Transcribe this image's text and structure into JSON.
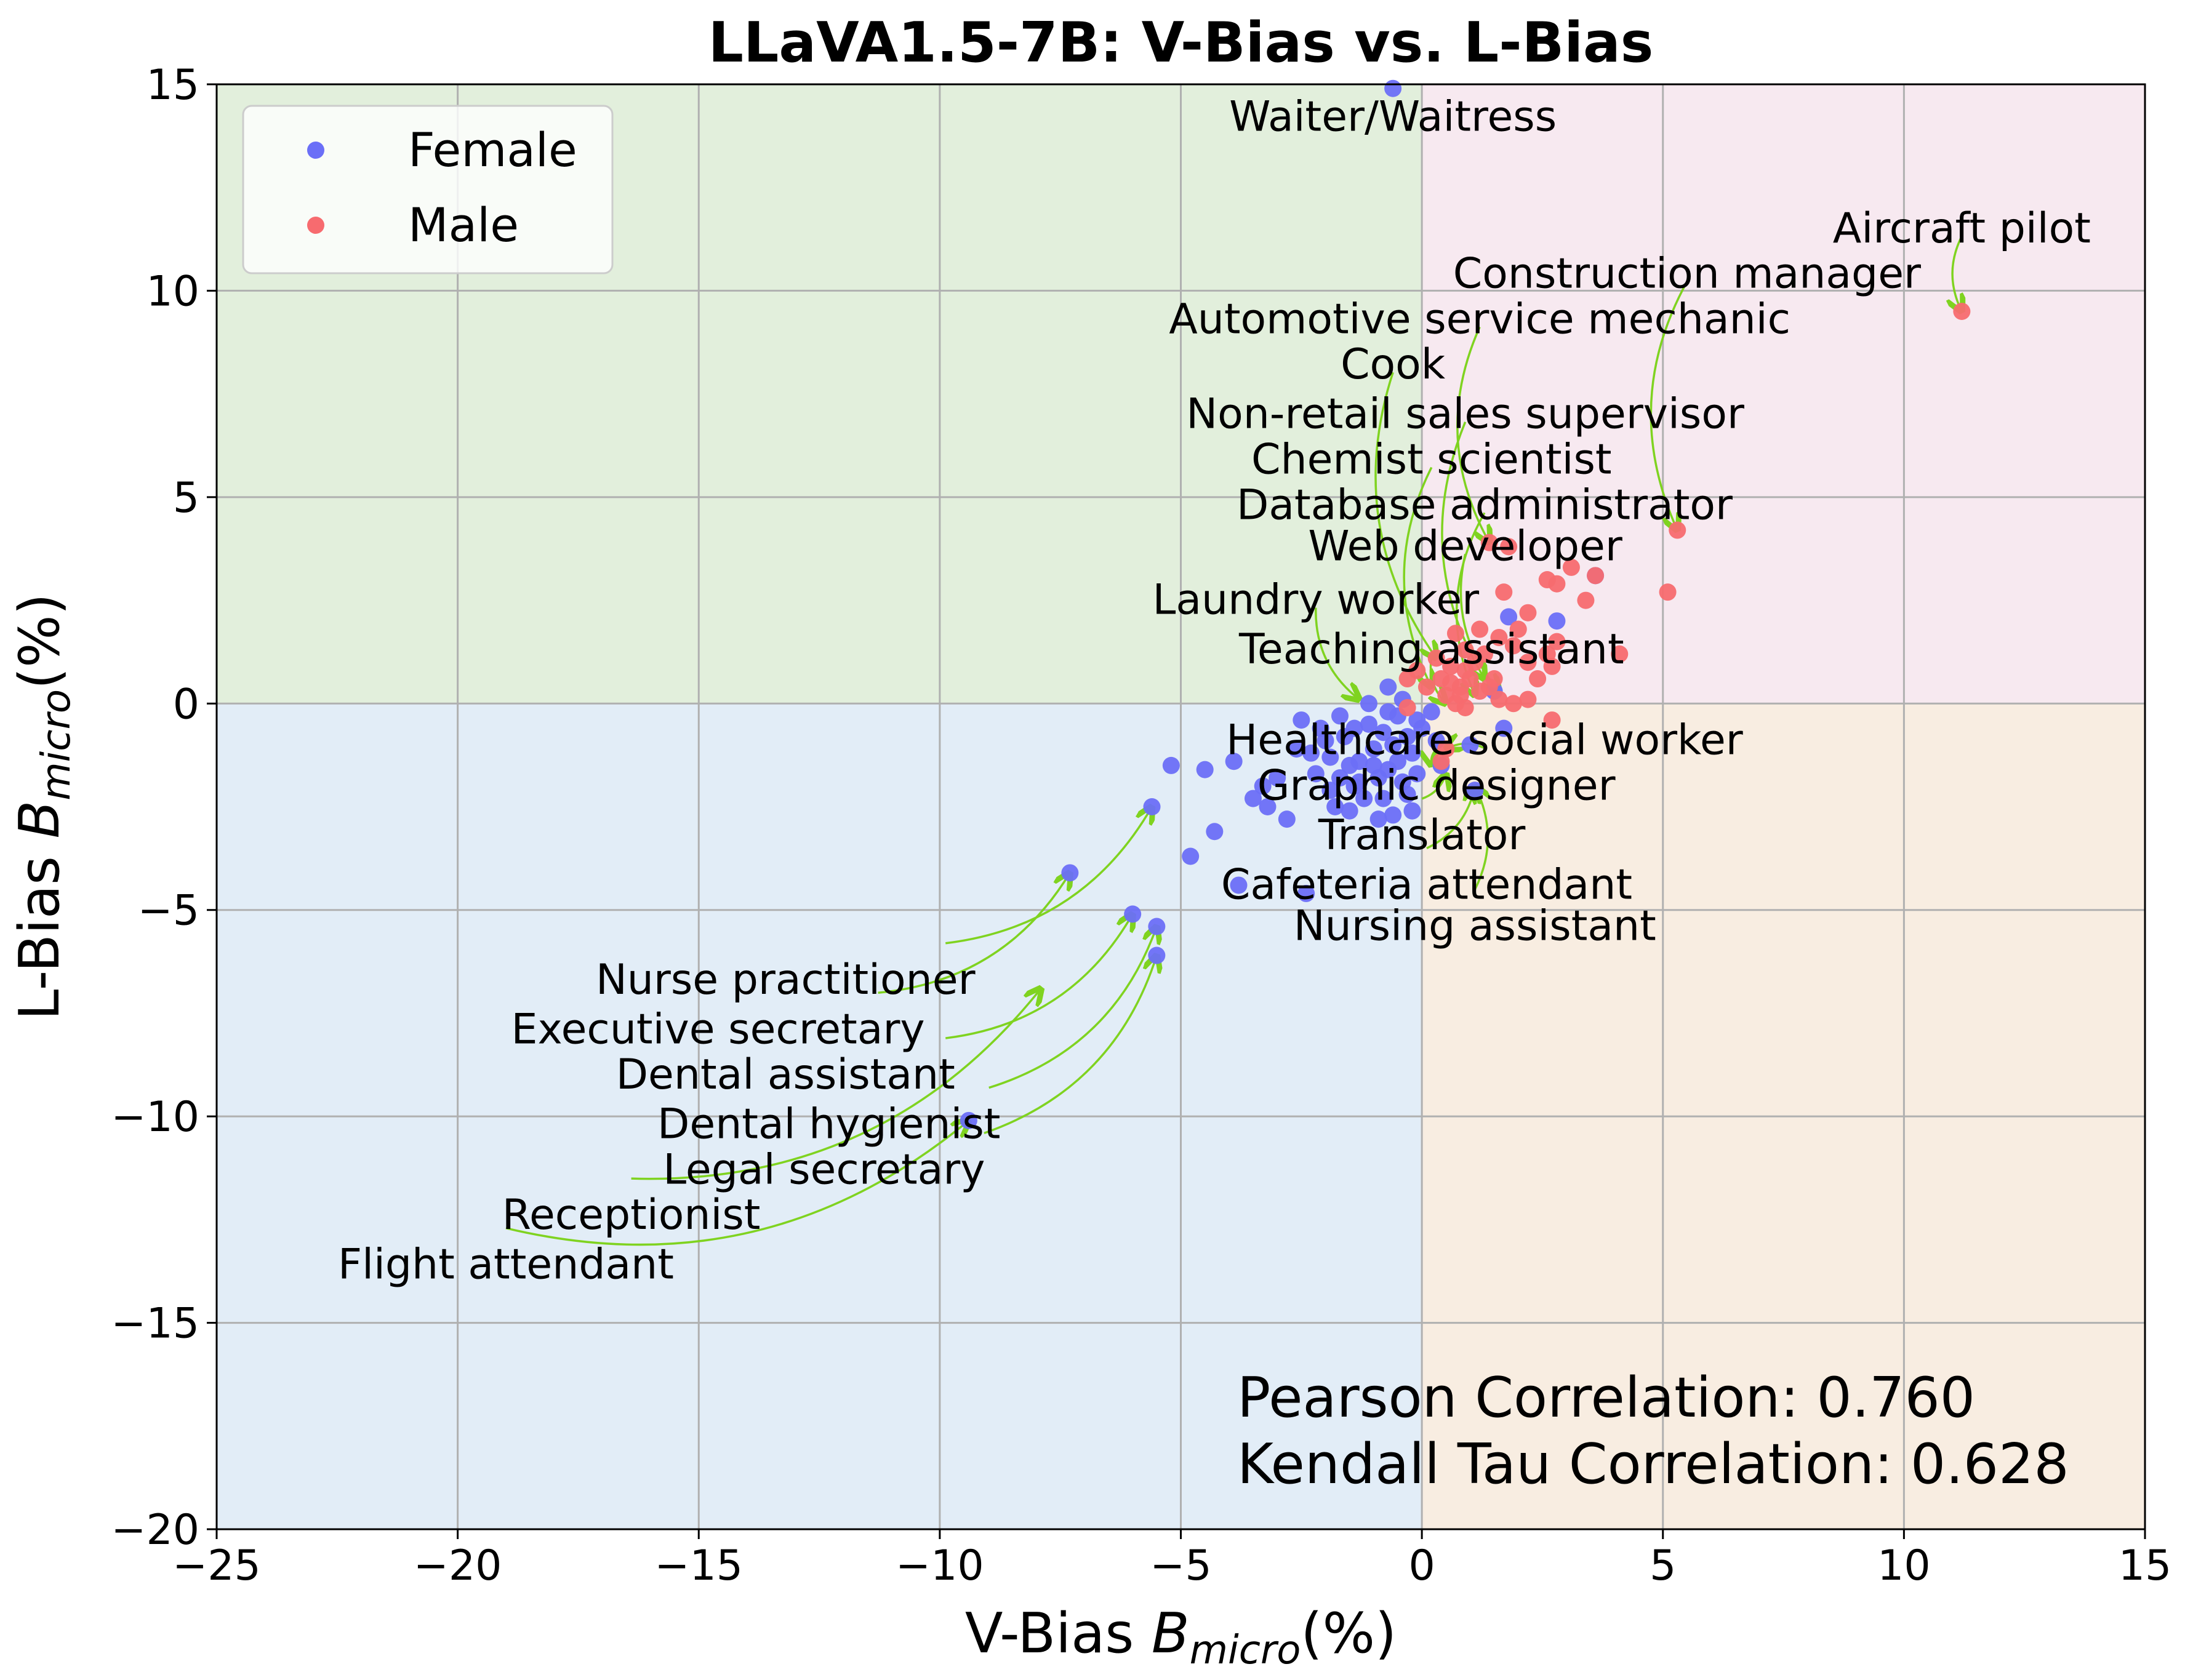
{
  "chart_data": {
    "type": "scatter",
    "title": "LLaVA1.5-7B: V-Bias vs. L-Bias",
    "xlabel": "V-Bias  B_micro(%)",
    "ylabel": "L-Bias  B_micro(%)",
    "xlabel_parts": {
      "prefix": "V-Bias  ",
      "var": "B",
      "sub": "micro",
      "suffix": "(%)"
    },
    "ylabel_parts": {
      "prefix": "L-Bias  ",
      "var": "B",
      "sub": "micro",
      "suffix": "(%)"
    },
    "xlim": [
      -25,
      15
    ],
    "ylim": [
      -20,
      15
    ],
    "x_ticks": [
      -25,
      -20,
      -15,
      -10,
      -5,
      0,
      5,
      10,
      15
    ],
    "y_ticks": [
      -20,
      -15,
      -10,
      -5,
      0,
      5,
      10,
      15
    ],
    "x_tick_labels": [
      "−25",
      "−20",
      "−15",
      "−10",
      "−5",
      "0",
      "5",
      "10",
      "15"
    ],
    "y_tick_labels": [
      "−20",
      "−15",
      "−10",
      "−5",
      "0",
      "5",
      "10",
      "15"
    ],
    "grid": true,
    "legend_position": "top-left",
    "quadrant_colors": {
      "top_left": "#e2efdc",
      "top_right": "#f7e9f0",
      "bottom_left": "#e2edf7",
      "bottom_right": "#f8ede1"
    },
    "annotation_arrow_color": "#7fd320",
    "series": [
      {
        "name": "Female",
        "color": "#6b6ff7",
        "points": [
          [
            -0.6,
            14.9
          ],
          [
            -7.3,
            -4.1
          ],
          [
            -9.4,
            -10.1
          ],
          [
            -6.0,
            -5.1
          ],
          [
            -5.5,
            -5.4
          ],
          [
            -5.6,
            -2.5
          ],
          [
            -5.5,
            -6.1
          ],
          [
            -5.2,
            -1.5
          ],
          [
            -4.8,
            -3.7
          ],
          [
            -4.5,
            -1.6
          ],
          [
            -4.3,
            -3.1
          ],
          [
            -3.8,
            -4.4
          ],
          [
            -3.9,
            -1.4
          ],
          [
            -3.5,
            -2.3
          ],
          [
            -3.3,
            -2.0
          ],
          [
            -3.2,
            -2.5
          ],
          [
            -2.8,
            -2.8
          ],
          [
            -2.4,
            -4.6
          ],
          [
            -2.5,
            -0.4
          ],
          [
            -2.3,
            -1.2
          ],
          [
            -2.2,
            -1.7
          ],
          [
            -2.0,
            -0.9
          ],
          [
            -1.8,
            -2.5
          ],
          [
            -1.7,
            -0.3
          ],
          [
            -1.5,
            -1.5
          ],
          [
            -1.4,
            -0.6
          ],
          [
            -1.3,
            -1.9
          ],
          [
            -1.2,
            -2.3
          ],
          [
            -1.1,
            0.0
          ],
          [
            -1.0,
            -1.1
          ],
          [
            -0.9,
            -2.8
          ],
          [
            -0.8,
            -0.7
          ],
          [
            -0.7,
            -1.6
          ],
          [
            -0.7,
            0.4
          ],
          [
            -0.6,
            -2.7
          ],
          [
            -0.5,
            -0.3
          ],
          [
            -0.4,
            -1.9
          ],
          [
            -0.3,
            -0.8
          ],
          [
            -0.2,
            -1.2
          ],
          [
            -0.1,
            -0.4
          ],
          [
            0.2,
            -0.2
          ],
          [
            0.4,
            -1.5
          ],
          [
            1.0,
            -1.0
          ],
          [
            1.1,
            -2.1
          ],
          [
            1.8,
            2.1
          ],
          [
            2.8,
            2.0
          ],
          [
            3.6,
            3.1
          ],
          [
            -1.9,
            -1.3
          ],
          [
            -1.6,
            -0.8
          ],
          [
            -1.3,
            -1.4
          ],
          [
            -0.9,
            -1.8
          ],
          [
            -0.6,
            -1.0
          ],
          [
            -0.3,
            -2.2
          ],
          [
            -2.1,
            -0.6
          ],
          [
            -1.4,
            -2.0
          ],
          [
            -0.5,
            -1.4
          ],
          [
            -1.1,
            -0.5
          ],
          [
            -0.8,
            -2.3
          ],
          [
            -2.6,
            -1.1
          ],
          [
            -1.7,
            -1.8
          ],
          [
            0.0,
            -0.6
          ],
          [
            -0.2,
            -2.6
          ],
          [
            -1.5,
            -2.6
          ],
          [
            -3.0,
            -1.8
          ],
          [
            -0.4,
            0.1
          ],
          [
            0.3,
            -0.9
          ],
          [
            -1.0,
            -1.5
          ],
          [
            -1.9,
            -2.1
          ],
          [
            -0.7,
            -0.2
          ],
          [
            1.5,
            0.3
          ],
          [
            1.7,
            -0.6
          ],
          [
            -0.1,
            -1.7
          ]
        ]
      },
      {
        "name": "Male",
        "color": "#f76b6f",
        "points": [
          [
            11.2,
            9.5
          ],
          [
            5.3,
            4.2
          ],
          [
            5.1,
            2.7
          ],
          [
            4.1,
            1.2
          ],
          [
            3.6,
            3.1
          ],
          [
            3.4,
            2.5
          ],
          [
            3.1,
            3.3
          ],
          [
            2.8,
            2.9
          ],
          [
            2.6,
            3.0
          ],
          [
            2.8,
            1.5
          ],
          [
            2.7,
            0.9
          ],
          [
            2.6,
            1.2
          ],
          [
            2.2,
            2.2
          ],
          [
            2.2,
            1.0
          ],
          [
            2.2,
            0.1
          ],
          [
            1.8,
            3.8
          ],
          [
            1.7,
            2.7
          ],
          [
            1.6,
            1.6
          ],
          [
            1.5,
            0.6
          ],
          [
            1.4,
            3.9
          ],
          [
            1.3,
            1.2
          ],
          [
            1.2,
            0.3
          ],
          [
            1.1,
            1.0
          ],
          [
            1.0,
            0.6
          ],
          [
            0.9,
            1.3
          ],
          [
            0.9,
            -0.1
          ],
          [
            0.8,
            0.4
          ],
          [
            0.7,
            1.7
          ],
          [
            0.6,
            0.9
          ],
          [
            0.5,
            0.2
          ],
          [
            0.4,
            0.6
          ],
          [
            0.3,
            1.1
          ],
          [
            0.1,
            0.4
          ],
          [
            -0.1,
            0.8
          ],
          [
            -0.3,
            0.6
          ],
          [
            -0.3,
            -0.1
          ],
          [
            0.4,
            -1.4
          ],
          [
            0.5,
            -1.1
          ],
          [
            0.7,
            0.0
          ],
          [
            1.9,
            0.0
          ],
          [
            1.9,
            1.4
          ],
          [
            2.7,
            -0.4
          ],
          [
            1.6,
            0.1
          ],
          [
            2.0,
            1.8
          ],
          [
            1.2,
            1.8
          ],
          [
            0.8,
            0.2
          ],
          [
            0.6,
            0.5
          ],
          [
            1.4,
            0.4
          ],
          [
            2.4,
            0.6
          ],
          [
            0.9,
            0.8
          ]
        ]
      }
    ],
    "annotations": [
      {
        "text": "Waiter/Waitress",
        "xy": [
          -0.6,
          14.9
        ],
        "xytext": [
          -0.6,
          14.2
        ],
        "arrow": false
      },
      {
        "text": "Aircraft pilot",
        "xy": [
          11.2,
          9.5
        ],
        "xytext": [
          11.2,
          11.5
        ],
        "arrow": true
      },
      {
        "text": "Construction manager",
        "xy": [
          5.3,
          4.2
        ],
        "xytext": [
          5.5,
          10.4
        ],
        "arrow": true
      },
      {
        "text": "Automotive service mechanic",
        "xy": [
          1.4,
          3.9
        ],
        "xytext": [
          1.2,
          9.3
        ],
        "arrow": true
      },
      {
        "text": "Cook",
        "xy": [
          0.3,
          1.1
        ],
        "xytext": [
          -0.6,
          8.2
        ],
        "arrow": true
      },
      {
        "text": "Non-retail sales supervisor",
        "xy": [
          1.3,
          0.6
        ],
        "xytext": [
          0.9,
          7.0
        ],
        "arrow": true
      },
      {
        "text": "Chemist scientist",
        "xy": [
          0.2,
          0.4
        ],
        "xytext": [
          0.2,
          5.9
        ],
        "arrow": true
      },
      {
        "text": "Database administrator",
        "xy": [
          1.1,
          0.2
        ],
        "xytext": [
          1.3,
          4.8
        ],
        "arrow": true
      },
      {
        "text": "Web developer",
        "xy": [
          1.6,
          0.3
        ],
        "xytext": [
          0.9,
          3.8
        ],
        "arrow": true
      },
      {
        "text": "Laundry worker",
        "xy": [
          -1.3,
          0.1
        ],
        "xytext": [
          -2.2,
          2.5
        ],
        "arrow": true
      },
      {
        "text": "Teaching assistant",
        "xy": [
          0.5,
          0.0
        ],
        "xytext": [
          0.2,
          1.3
        ],
        "arrow": true
      },
      {
        "text": "Healthcare social worker",
        "xy": [
          0.5,
          -1.1
        ],
        "xytext": [
          1.3,
          -0.9
        ],
        "arrow": true
      },
      {
        "text": "Graphic designer",
        "xy": [
          0.2,
          -1.5
        ],
        "xytext": [
          0.3,
          -2.0
        ],
        "arrow": true
      },
      {
        "text": "Translator",
        "xy": [
          0.5,
          -1.7
        ],
        "xytext": [
          0.0,
          -3.2
        ],
        "arrow": true
      },
      {
        "text": "Cafeteria attendant",
        "xy": [
          1.1,
          -2.0
        ],
        "xytext": [
          0.1,
          -4.4
        ],
        "arrow": true
      },
      {
        "text": "Nursing assistant",
        "xy": [
          1.1,
          -2.0
        ],
        "xytext": [
          1.1,
          -5.4
        ],
        "arrow": true
      },
      {
        "text": "Nurse practitioner",
        "xy": [
          -5.6,
          -2.5
        ],
        "xytext": [
          -13.2,
          -6.7
        ],
        "arrow": true
      },
      {
        "text": "Executive secretary",
        "xy": [
          -7.3,
          -4.1
        ],
        "xytext": [
          -14.6,
          -7.9
        ],
        "arrow": true
      },
      {
        "text": "Dental assistant",
        "xy": [
          -6.0,
          -5.1
        ],
        "xytext": [
          -13.2,
          -9.0
        ],
        "arrow": true
      },
      {
        "text": "Dental hygienist",
        "xy": [
          -5.5,
          -5.4
        ],
        "xytext": [
          -12.3,
          -10.2
        ],
        "arrow": true
      },
      {
        "text": "Legal secretary",
        "xy": [
          -5.5,
          -6.1
        ],
        "xytext": [
          -12.4,
          -11.3
        ],
        "arrow": true
      },
      {
        "text": "Receptionist",
        "xy": [
          -7.9,
          -6.9
        ],
        "xytext": [
          -16.4,
          -12.4
        ],
        "arrow": true
      },
      {
        "text": "Flight attendant",
        "xy": [
          -9.4,
          -10.1
        ],
        "xytext": [
          -19.0,
          -13.6
        ],
        "arrow": true
      }
    ],
    "stats": {
      "pearson": "Pearson Correlation: 0.760",
      "kendall": "Kendall Tau Correlation: 0.628"
    }
  }
}
